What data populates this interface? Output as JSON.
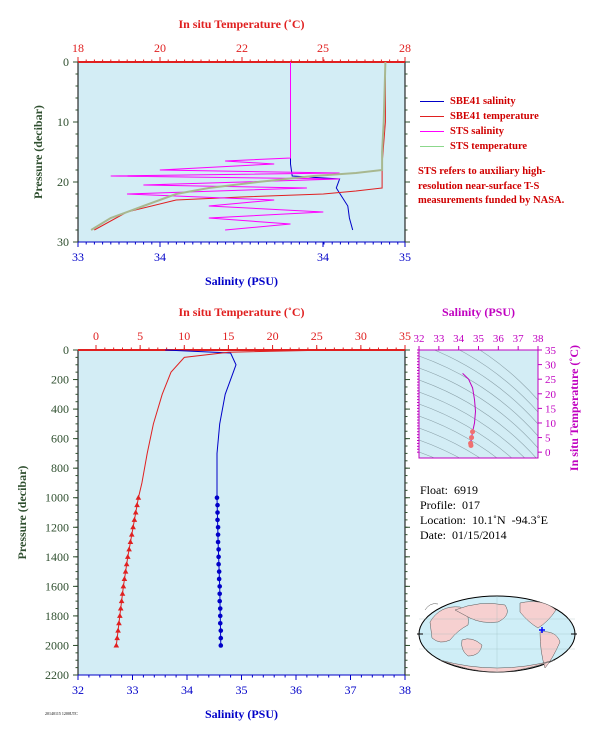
{
  "colors": {
    "plot_bg": "#d3edf5",
    "salinity_blue": "#0000c8",
    "temperature_red": "#e02020",
    "sts_salinity": "#ff00ff",
    "sts_temperature": "#a8b890",
    "axis_green": "#2f4f2f",
    "inset_magenta": "#c000c0"
  },
  "top_panel": {
    "title_temp": "In situ Temperature (˚C)",
    "xlabel_sal": "Salinity (PSU)",
    "ylabel": "Pressure (decibar)",
    "temp_ticks": [
      "18",
      "20",
      "22",
      "25",
      "28"
    ],
    "sal_ticks": [
      "33",
      "34",
      "34",
      "35"
    ],
    "pres_ticks": [
      "0",
      "10",
      "20",
      "30"
    ]
  },
  "legend": [
    {
      "label": "SBE41 salinity",
      "color": "#0000c8"
    },
    {
      "label": "SBE41 temperature",
      "color": "#e02020"
    },
    {
      "label": "STS salinity",
      "color": "#ff00ff"
    },
    {
      "label": "STS temperature",
      "color": "#8cd88c"
    }
  ],
  "note": "STS refers to auxiliary high-resolution near-surface T-S measurements funded by NASA.",
  "bottom_panel": {
    "title_temp": "In situ Temperature (˚C)",
    "xlabel_sal": "Salinity (PSU)",
    "ylabel": "Pressure (decibar)",
    "temp_ticks": [
      "0",
      "5",
      "10",
      "15",
      "20",
      "25",
      "30",
      "35"
    ],
    "sal_ticks": [
      "32",
      "33",
      "34",
      "35",
      "36",
      "37",
      "38"
    ],
    "pres_ticks": [
      "0",
      "200",
      "400",
      "600",
      "800",
      "1000",
      "1200",
      "1400",
      "1600",
      "1800",
      "2000",
      "2200"
    ]
  },
  "inset": {
    "title": "Salinity (PSU)",
    "ylabel": "In situ Temperature (˚C)",
    "x_ticks": [
      "32",
      "33",
      "34",
      "35",
      "36",
      "37",
      "38"
    ],
    "y_ticks": [
      "0",
      "5",
      "10",
      "15",
      "20",
      "25",
      "30",
      "35"
    ]
  },
  "info": {
    "float": "Float:  6919",
    "profile": "Profile:  017",
    "location": "Location:  10.1˚N  -94.3˚E",
    "date": "Date:  01/15/2014"
  },
  "stamp": "20140115 1200UTC",
  "chart_data": [
    {
      "type": "line",
      "title": "In situ Temperature (˚C)",
      "xlabel": "Salinity (PSU)",
      "ylabel": "Pressure (decibar)",
      "ylim": [
        30,
        0
      ],
      "series": [
        {
          "name": "SBE41 salinity",
          "axis": "salinity",
          "xlim": [
            33,
            35
          ],
          "points": [
            [
              34.3,
              0
            ],
            [
              34.3,
              10
            ],
            [
              34.3,
              17
            ],
            [
              34.31,
              19
            ],
            [
              34.6,
              19.5
            ],
            [
              34.58,
              21
            ],
            [
              34.65,
              24
            ],
            [
              34.66,
              26
            ],
            [
              34.68,
              28
            ]
          ]
        },
        {
          "name": "SBE41 temperature",
          "axis": "temperature",
          "xlim": [
            18,
            28
          ],
          "points": [
            [
              27.4,
              0
            ],
            [
              27.4,
              10
            ],
            [
              27.3,
              17
            ],
            [
              27.3,
              21
            ],
            [
              26.5,
              21.5
            ],
            [
              25.5,
              22
            ],
            [
              23,
              22.5
            ],
            [
              21,
              23
            ],
            [
              19.5,
              25
            ],
            [
              18.5,
              28
            ]
          ]
        },
        {
          "name": "STS salinity",
          "axis": "salinity",
          "xlim": [
            33,
            35
          ],
          "points": [
            [
              34.3,
              0
            ],
            [
              34.3,
              16
            ],
            [
              33.9,
              16.5
            ],
            [
              34.2,
              17
            ],
            [
              33.5,
              18
            ],
            [
              34.6,
              18.5
            ],
            [
              33.2,
              19
            ],
            [
              34.6,
              19.5
            ],
            [
              33.4,
              20.5
            ],
            [
              34.4,
              21
            ],
            [
              33.3,
              22
            ],
            [
              34.2,
              23
            ],
            [
              33.8,
              24
            ],
            [
              34.5,
              25
            ],
            [
              33.8,
              26
            ],
            [
              34.3,
              27
            ],
            [
              33.9,
              28
            ]
          ]
        },
        {
          "name": "STS temperature",
          "axis": "temperature",
          "xlim": [
            18,
            28
          ],
          "points": [
            [
              27.4,
              0
            ],
            [
              27.35,
              10
            ],
            [
              27.3,
              15
            ],
            [
              27.3,
              18
            ],
            [
              26.5,
              18.5
            ],
            [
              25.2,
              19
            ],
            [
              23.5,
              20
            ],
            [
              22,
              21
            ],
            [
              21,
              22
            ],
            [
              20,
              24
            ],
            [
              19,
              26
            ],
            [
              18.4,
              28
            ]
          ]
        }
      ]
    },
    {
      "type": "line",
      "title": "In situ Temperature (˚C)",
      "xlabel": "Salinity (PSU)",
      "ylabel": "Pressure (decibar)",
      "ylim": [
        2200,
        0
      ],
      "series": [
        {
          "name": "Salinity",
          "axis": "salinity",
          "xlim": [
            32,
            38
          ],
          "points": [
            [
              33.6,
              0
            ],
            [
              34.8,
              20
            ],
            [
              34.9,
              100
            ],
            [
              34.85,
              150
            ],
            [
              34.7,
              300
            ],
            [
              34.6,
              500
            ],
            [
              34.55,
              700
            ],
            [
              34.55,
              1000
            ],
            [
              34.57,
              1300
            ],
            [
              34.6,
              1600
            ],
            [
              34.62,
              2000
            ]
          ]
        },
        {
          "name": "Temperature",
          "axis": "temperature",
          "xlim": [
            0,
            35
          ],
          "points": [
            [
              26.7,
              0
            ],
            [
              15,
              15
            ],
            [
              10,
              50
            ],
            [
              8.5,
              150
            ],
            [
              7.5,
              300
            ],
            [
              6.5,
              500
            ],
            [
              5.8,
              700
            ],
            [
              5.2,
              900
            ],
            [
              4.8,
              1000
            ],
            [
              4.2,
              1200
            ],
            [
              3.6,
              1400
            ],
            [
              3.1,
              1600
            ],
            [
              2.7,
              1800
            ],
            [
              2.3,
              2000
            ]
          ]
        }
      ],
      "markers": {
        "salinity": [
          [
            34.55,
            1000
          ],
          [
            34.56,
            1050
          ],
          [
            34.56,
            1100
          ],
          [
            34.56,
            1150
          ],
          [
            34.57,
            1200
          ],
          [
            34.57,
            1250
          ],
          [
            34.57,
            1300
          ],
          [
            34.58,
            1350
          ],
          [
            34.58,
            1400
          ],
          [
            34.58,
            1450
          ],
          [
            34.59,
            1500
          ],
          [
            34.59,
            1550
          ],
          [
            34.6,
            1600
          ],
          [
            34.6,
            1650
          ],
          [
            34.6,
            1700
          ],
          [
            34.61,
            1750
          ],
          [
            34.61,
            1800
          ],
          [
            34.61,
            1850
          ],
          [
            34.62,
            1900
          ],
          [
            34.62,
            1950
          ],
          [
            34.62,
            2000
          ]
        ],
        "temperature": [
          [
            4.8,
            1000
          ],
          [
            4.65,
            1050
          ],
          [
            4.5,
            1100
          ],
          [
            4.35,
            1150
          ],
          [
            4.2,
            1200
          ],
          [
            4.05,
            1250
          ],
          [
            3.9,
            1300
          ],
          [
            3.75,
            1350
          ],
          [
            3.6,
            1400
          ],
          [
            3.47,
            1450
          ],
          [
            3.35,
            1500
          ],
          [
            3.22,
            1550
          ],
          [
            3.1,
            1600
          ],
          [
            3.0,
            1650
          ],
          [
            2.9,
            1700
          ],
          [
            2.8,
            1750
          ],
          [
            2.7,
            1800
          ],
          [
            2.6,
            1850
          ],
          [
            2.5,
            1900
          ],
          [
            2.4,
            1950
          ],
          [
            2.3,
            2000
          ]
        ]
      }
    },
    {
      "type": "scatter",
      "title": "Salinity (PSU)",
      "ylabel": "In situ Temperature (˚C)",
      "xlim": [
        32,
        38
      ],
      "ylim": [
        -2,
        35
      ],
      "points": [
        [
          34.2,
          27
        ],
        [
          34.5,
          25
        ],
        [
          34.7,
          22
        ],
        [
          34.8,
          18
        ],
        [
          34.85,
          14
        ],
        [
          34.8,
          10
        ],
        [
          34.7,
          7
        ],
        [
          34.65,
          5
        ],
        [
          34.6,
          3
        ],
        [
          34.62,
          2.3
        ]
      ]
    }
  ]
}
